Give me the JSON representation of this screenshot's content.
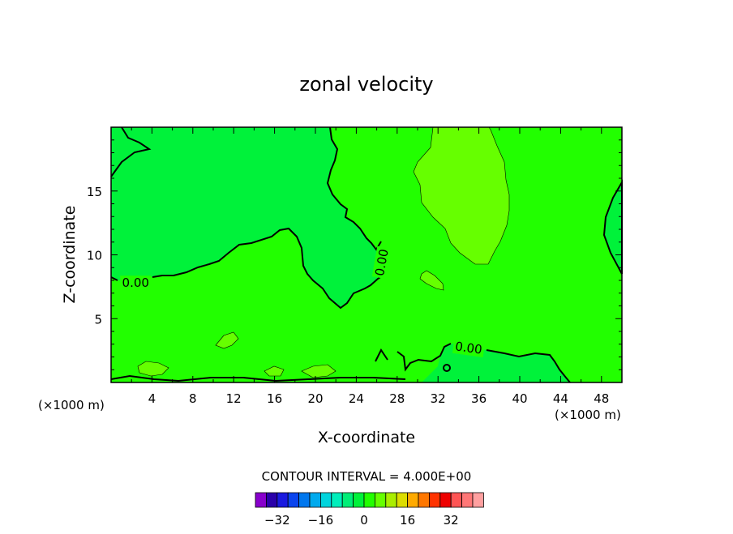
{
  "chart_data": {
    "type": "contour",
    "title": "zonal velocity",
    "xlabel": "X-coordinate",
    "ylabel": "Z-coordinate",
    "x_unit": "(×1000 m)",
    "xlim": [
      0,
      50
    ],
    "ylim": [
      0,
      20
    ],
    "x_ticks": [
      4,
      8,
      12,
      16,
      20,
      24,
      28,
      32,
      36,
      40,
      44,
      48
    ],
    "y_ticks": [
      5,
      10,
      15
    ],
    "contour_interval_text": "CONTOUR INTERVAL = 4.000E+00",
    "contour_interval": 4.0,
    "contour_labels": [
      {
        "text": "0.00",
        "x": 2.4,
        "y": 7.8
      },
      {
        "text": "0.00",
        "x": 26.5,
        "y": 9.4
      },
      {
        "text": "0.00",
        "x": 35.0,
        "y": 2.7
      }
    ],
    "regions": [
      {
        "level": "0 to 4",
        "color": "#22ff00",
        "desc": "background field"
      },
      {
        "level": "-4 to 0",
        "color": "#00f23a",
        "desc": "upper-centre region bounded by the zero contour"
      },
      {
        "level": "4 to 8",
        "color": "#66ff00",
        "desc": "upper-right core near x=31-39"
      },
      {
        "level": "-4 to 0",
        "color": "#00f23a",
        "desc": "near-surface region at x=33-44"
      }
    ],
    "colorbar": {
      "colors": [
        "#8800cc",
        "#2a00aa",
        "#1a1ae0",
        "#0a44ee",
        "#0077ee",
        "#00aaee",
        "#00d4dd",
        "#00eebb",
        "#00ee77",
        "#00f23a",
        "#22ff00",
        "#66ff00",
        "#aaee00",
        "#dddd00",
        "#ffaa00",
        "#ff7700",
        "#ff3300",
        "#ee0000",
        "#ff5555",
        "#ff7777",
        "#ffa0a0"
      ],
      "tick_labels": [
        "−32",
        "−16",
        "0",
        "16",
        "32"
      ],
      "tick_values": [
        -32,
        -16,
        0,
        16,
        32
      ]
    }
  }
}
